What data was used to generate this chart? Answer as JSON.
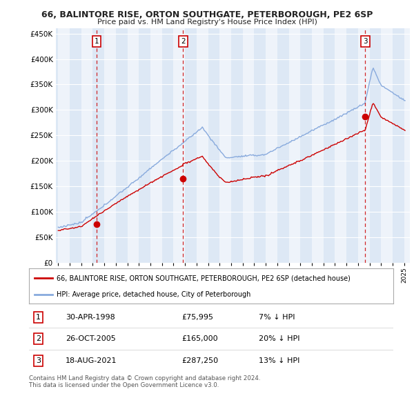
{
  "title1": "66, BALINTORE RISE, ORTON SOUTHGATE, PETERBOROUGH, PE2 6SP",
  "title2": "Price paid vs. HM Land Registry's House Price Index (HPI)",
  "ylabel_ticks": [
    "£0",
    "£50K",
    "£100K",
    "£150K",
    "£200K",
    "£250K",
    "£300K",
    "£350K",
    "£400K",
    "£450K"
  ],
  "ytick_values": [
    0,
    50000,
    100000,
    150000,
    200000,
    250000,
    300000,
    350000,
    400000,
    450000
  ],
  "ylim": [
    0,
    460000
  ],
  "xlim_start": 1994.8,
  "xlim_end": 2025.5,
  "sale_dates": [
    1998.33,
    2005.82,
    2021.63
  ],
  "sale_prices": [
    75995,
    165000,
    287250
  ],
  "sale_labels": [
    "1",
    "2",
    "3"
  ],
  "vline_color": "#cc0000",
  "sale_dot_color": "#cc0000",
  "hpi_line_color": "#88aadd",
  "price_line_color": "#cc0000",
  "legend_label_red": "66, BALINTORE RISE, ORTON SOUTHGATE, PETERBOROUGH, PE2 6SP (detached house)",
  "legend_label_blue": "HPI: Average price, detached house, City of Peterborough",
  "table_rows": [
    {
      "num": "1",
      "date": "30-APR-1998",
      "price": "£75,995",
      "hpi": "7% ↓ HPI"
    },
    {
      "num": "2",
      "date": "26-OCT-2005",
      "price": "£165,000",
      "hpi": "20% ↓ HPI"
    },
    {
      "num": "3",
      "date": "18-AUG-2021",
      "price": "£287,250",
      "hpi": "13% ↓ HPI"
    }
  ],
  "footer": "Contains HM Land Registry data © Crown copyright and database right 2024.\nThis data is licensed under the Open Government Licence v3.0.",
  "bg_color": "#ffffff",
  "plot_bg_color": "#dde8f5",
  "band_color": "#dde8f5",
  "grid_color": "#ffffff"
}
